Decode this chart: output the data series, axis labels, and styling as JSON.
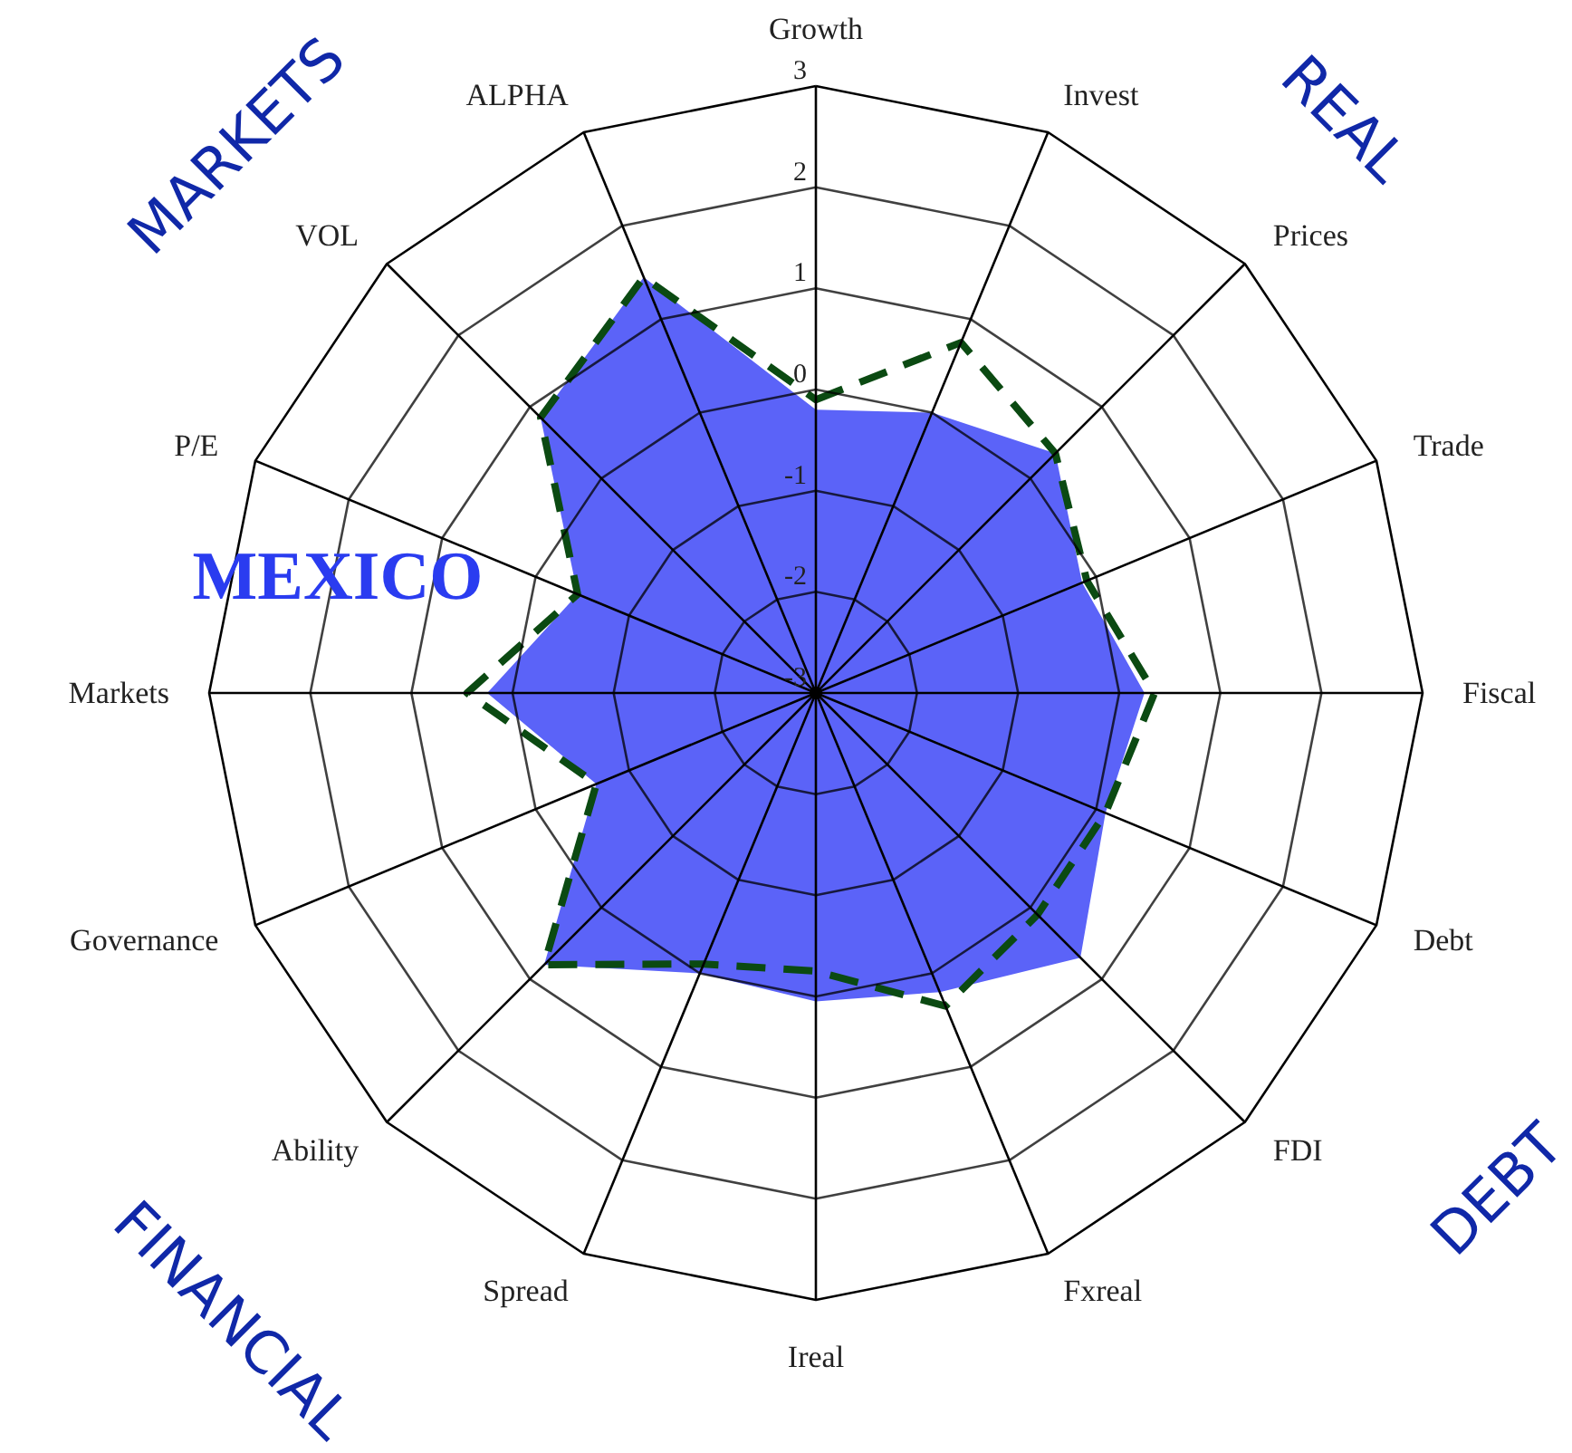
{
  "chart_data": {
    "type": "radar",
    "categories": [
      "Growth",
      "Invest",
      "Prices",
      "Trade",
      "Fiscal",
      "Debt",
      "FDI",
      "Fxreal",
      "Ireal",
      "Spread",
      "Ability",
      "Governance",
      "Markets",
      "P/E",
      "VOL",
      "ALPHA"
    ],
    "series": [
      {
        "color": "#5b63f8",
        "values": [
          -0.2,
          0.0,
          0.35,
          -0.15,
          0.25,
          0.1,
          0.7,
          0.2,
          0.05,
          0.0,
          0.8,
          -0.65,
          0.25,
          -0.45,
          0.85,
          1.45
        ]
      },
      {
        "color": "#0b4a12",
        "line_style": "dashed",
        "values": [
          -0.1,
          0.75,
          0.35,
          -0.1,
          0.35,
          0.1,
          0.1,
          0.35,
          -0.25,
          -0.1,
          0.8,
          -0.65,
          0.45,
          -0.45,
          0.85,
          1.45
        ]
      }
    ],
    "ylim": [
      -3,
      3
    ],
    "yticks": [
      -3,
      -2,
      -1,
      0,
      1,
      2,
      3
    ],
    "annotations": [
      "MARKETS",
      "REAL",
      "FINANCIAL",
      "DEBT",
      "MEXICO"
    ]
  }
}
